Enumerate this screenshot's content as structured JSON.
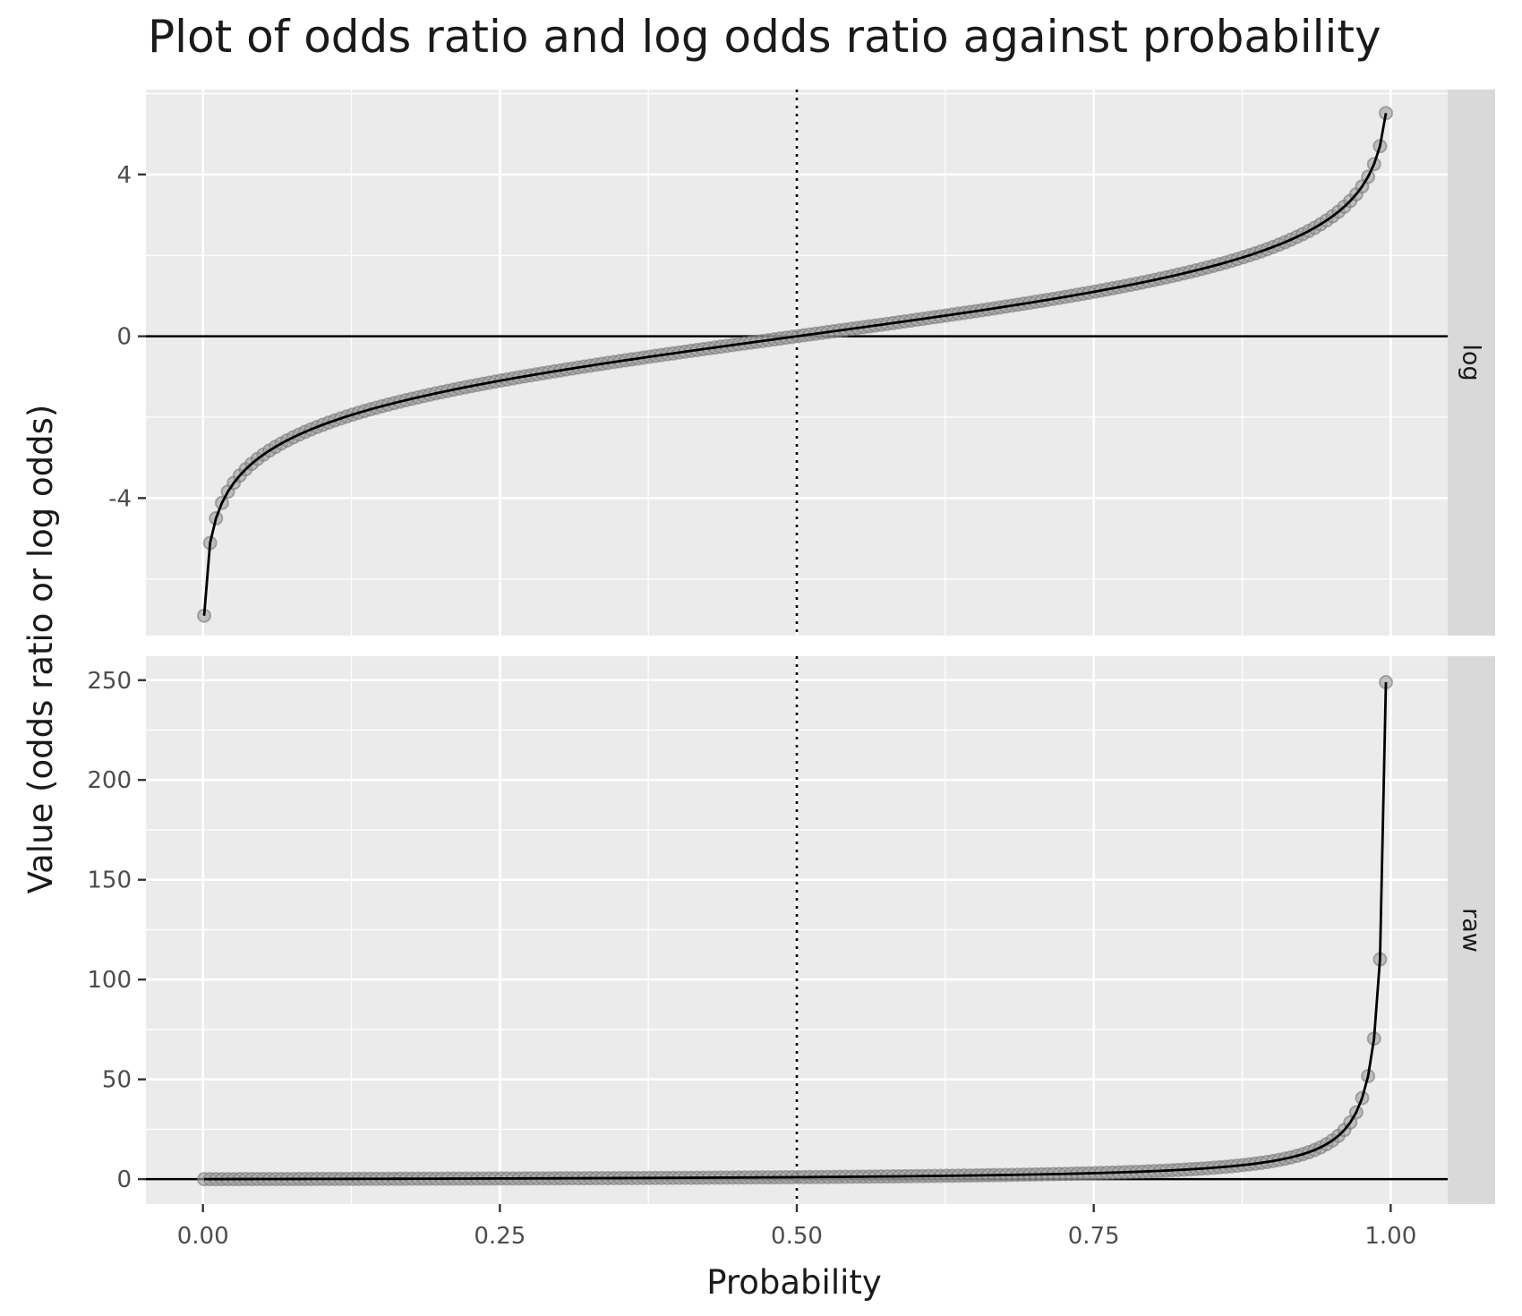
{
  "chart_data": {
    "type": "line",
    "title": "Plot of odds ratio and log odds ratio against probability",
    "xlabel": "Probability",
    "ylabel": "Value (odds ratio or log odds)",
    "x_ticks": [
      "0.00",
      "0.25",
      "0.50",
      "0.75",
      "1.00"
    ],
    "x_tick_values": [
      0,
      0.25,
      0.5,
      0.75,
      1.0
    ],
    "xlim": [
      -0.048,
      1.048
    ],
    "reference_lines": {
      "vertical_x": 0.5,
      "vertical_style": "dotted",
      "horizontal_y": 0
    },
    "grid": true,
    "colors": {
      "panel_bg": "#EBEBEB",
      "strip_bg": "#D9D9D9",
      "grid": "#FFFFFF",
      "line": "#000000",
      "points": "#9E9E9E"
    },
    "series_note_x": "probability from 0.001 to 0.996 in steps of 0.005",
    "panels": [
      {
        "strip_label": "log",
        "transform": "log odds",
        "ylim": [
          -7.4,
          6.1
        ],
        "y_ticks": [
          "4",
          "0",
          "-4"
        ],
        "y_tick_values": [
          4,
          0,
          -4
        ],
        "minor_y": [
          6,
          2,
          -2,
          -6
        ]
      },
      {
        "strip_label": "raw",
        "transform": "odds ratio",
        "ylim": [
          -12.5,
          262
        ],
        "y_ticks": [
          "250",
          "200",
          "150",
          "100",
          "50",
          "0"
        ],
        "y_tick_values": [
          250,
          200,
          150,
          100,
          50,
          0
        ],
        "minor_y": [
          225,
          175,
          125,
          75,
          25
        ]
      }
    ],
    "x_values": [
      0.001,
      0.006,
      0.011,
      0.016,
      0.021,
      0.026,
      0.031,
      0.036,
      0.041,
      0.046,
      0.051,
      0.056,
      0.061,
      0.066,
      0.071,
      0.076,
      0.081,
      0.086,
      0.091,
      0.096,
      0.101,
      0.106,
      0.111,
      0.116,
      0.121,
      0.126,
      0.131,
      0.136,
      0.141,
      0.146,
      0.151,
      0.156,
      0.161,
      0.166,
      0.171,
      0.176,
      0.181,
      0.186,
      0.191,
      0.196,
      0.201,
      0.206,
      0.211,
      0.216,
      0.221,
      0.226,
      0.231,
      0.236,
      0.241,
      0.246,
      0.251,
      0.256,
      0.261,
      0.266,
      0.271,
      0.276,
      0.281,
      0.286,
      0.291,
      0.296,
      0.301,
      0.306,
      0.311,
      0.316,
      0.321,
      0.326,
      0.331,
      0.336,
      0.341,
      0.346,
      0.351,
      0.356,
      0.361,
      0.366,
      0.371,
      0.376,
      0.381,
      0.386,
      0.391,
      0.396,
      0.401,
      0.406,
      0.411,
      0.416,
      0.421,
      0.426,
      0.431,
      0.436,
      0.441,
      0.446,
      0.451,
      0.456,
      0.461,
      0.466,
      0.471,
      0.476,
      0.481,
      0.486,
      0.491,
      0.496,
      0.501,
      0.506,
      0.511,
      0.516,
      0.521,
      0.526,
      0.531,
      0.536,
      0.541,
      0.546,
      0.551,
      0.556,
      0.561,
      0.566,
      0.571,
      0.576,
      0.581,
      0.586,
      0.591,
      0.596,
      0.601,
      0.606,
      0.611,
      0.616,
      0.621,
      0.626,
      0.631,
      0.636,
      0.641,
      0.646,
      0.651,
      0.656,
      0.661,
      0.666,
      0.671,
      0.676,
      0.681,
      0.686,
      0.691,
      0.696,
      0.701,
      0.706,
      0.711,
      0.716,
      0.721,
      0.726,
      0.731,
      0.736,
      0.741,
      0.746,
      0.751,
      0.756,
      0.761,
      0.766,
      0.771,
      0.776,
      0.781,
      0.786,
      0.791,
      0.796,
      0.801,
      0.806,
      0.811,
      0.816,
      0.821,
      0.826,
      0.831,
      0.836,
      0.841,
      0.846,
      0.851,
      0.856,
      0.861,
      0.866,
      0.871,
      0.876,
      0.881,
      0.886,
      0.891,
      0.896,
      0.901,
      0.906,
      0.911,
      0.916,
      0.921,
      0.926,
      0.931,
      0.936,
      0.941,
      0.946,
      0.951,
      0.956,
      0.961,
      0.966,
      0.971,
      0.976,
      0.981,
      0.986,
      0.991,
      0.996
    ]
  }
}
